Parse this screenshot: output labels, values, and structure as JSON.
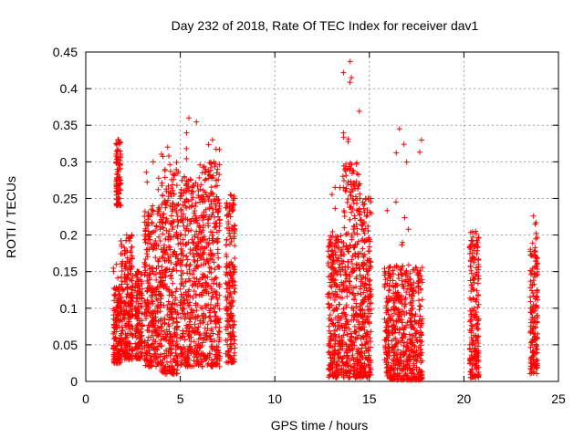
{
  "chart_data": {
    "type": "scatter",
    "title": "Day 232 of 2018, Rate Of TEC Index for receiver dav1",
    "xlabel": "GPS time / hours",
    "ylabel": "ROTI / TECUs",
    "xlim": [
      0,
      25
    ],
    "ylim": [
      0,
      0.45
    ],
    "x_ticks": [
      "0",
      "5",
      "10",
      "15",
      "20",
      "25"
    ],
    "y_ticks": [
      "0",
      "0.05",
      "0.1",
      "0.15",
      "0.2",
      "0.25",
      "0.3",
      "0.35",
      "0.4",
      "0.45"
    ],
    "grid": true,
    "marker": "+",
    "color": "#ff0000",
    "clusters": [
      {
        "x_range": [
          1.45,
          1.85
        ],
        "y_range": [
          0.025,
          0.13
        ],
        "peak_y": 0.16
      },
      {
        "x_range": [
          1.6,
          1.85
        ],
        "y_range": [
          0.24,
          0.33
        ],
        "peak_y": 0.33
      },
      {
        "x_range": [
          1.85,
          2.5
        ],
        "y_range": [
          0.03,
          0.2
        ],
        "peak_y": 0.2
      },
      {
        "x_range": [
          2.6,
          3.0
        ],
        "y_range": [
          0.03,
          0.15
        ],
        "peak_y": 0.15
      },
      {
        "x_range": [
          3.1,
          4.0
        ],
        "y_range": [
          0.02,
          0.24
        ],
        "peak_y": 0.3
      },
      {
        "x_range": [
          4.0,
          4.9
        ],
        "y_range": [
          0.01,
          0.3
        ],
        "peak_y": 0.32
      },
      {
        "x_range": [
          5.0,
          6.1
        ],
        "y_range": [
          0.02,
          0.28
        ],
        "peak_y": 0.36
      },
      {
        "x_range": [
          6.1,
          7.1
        ],
        "y_range": [
          0.02,
          0.3
        ],
        "peak_y": 0.33
      },
      {
        "x_range": [
          7.4,
          7.9
        ],
        "y_range": [
          0.025,
          0.25
        ],
        "peak_y": 0.255
      },
      {
        "x_range": [
          12.8,
          13.6
        ],
        "y_range": [
          0.005,
          0.2
        ],
        "peak_y": 0.265
      },
      {
        "x_range": [
          13.6,
          14.5
        ],
        "y_range": [
          0.005,
          0.3
        ],
        "peak_y": 0.437
      },
      {
        "x_range": [
          14.5,
          15.1
        ],
        "y_range": [
          0.005,
          0.25
        ],
        "peak_y": 0.25
      },
      {
        "x_range": [
          15.8,
          17.8
        ],
        "y_range": [
          0.002,
          0.16
        ],
        "peak_y": 0.345
      },
      {
        "x_range": [
          20.3,
          20.8
        ],
        "y_range": [
          0.005,
          0.2
        ],
        "peak_y": 0.205
      },
      {
        "x_range": [
          23.5,
          23.9
        ],
        "y_range": [
          0.01,
          0.2
        ],
        "peak_y": 0.226
      }
    ]
  }
}
